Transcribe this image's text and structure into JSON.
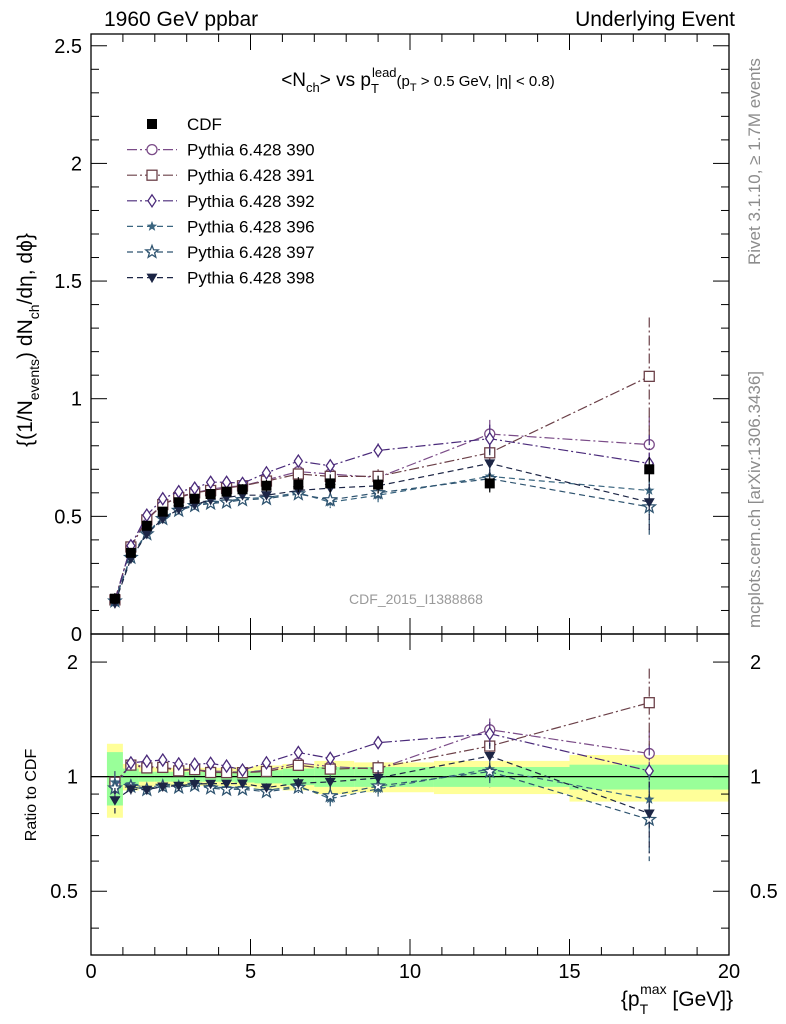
{
  "header": {
    "left": "1960 GeV ppbar",
    "right": "Underlying Event"
  },
  "side_labels": {
    "rivet": "Rivet 3.1.10, ≥ 1.7M events",
    "mcplots": "mcplots.cern.ch [arXiv:1306.3436]"
  },
  "watermark": "CDF_2015_I1388868",
  "main_ylabel": "{(1/N_events) dN_ch/dη, dϕ}",
  "ratio_ylabel": "Ratio to CDF",
  "xlabel": "{p_T^max [GeV]}",
  "chart_data": {
    "type": "scatter",
    "title": "<N_ch> vs p_T^lead (p_T > 0.5 GeV, |η| < 0.8)",
    "xlim": [
      0,
      20
    ],
    "ylim": [
      0,
      2.55
    ],
    "ratio_ylim": [
      0.34,
      2.37
    ],
    "x_ticks": [
      "0",
      "5",
      "10",
      "15",
      "20"
    ],
    "y_ticks": [
      "0",
      "0.5",
      "1",
      "1.5",
      "2",
      "2.5"
    ],
    "ratio_ticks": [
      "0.5",
      "1",
      "2"
    ],
    "legend_position": "top-left",
    "x": [
      0.75,
      1.25,
      1.75,
      2.25,
      2.75,
      3.25,
      3.75,
      4.25,
      4.75,
      5.5,
      6.5,
      7.5,
      9.0,
      12.5,
      17.5
    ],
    "cdf": {
      "name": "CDF",
      "color": "#000000",
      "values": [
        0.15,
        0.345,
        0.46,
        0.52,
        0.56,
        0.575,
        0.595,
        0.605,
        0.615,
        0.63,
        0.635,
        0.64,
        0.635,
        0.64,
        0.7
      ],
      "band_inner": [
        0.16,
        0.05,
        0.03,
        0.03,
        0.03,
        0.03,
        0.03,
        0.03,
        0.035,
        0.04,
        0.05,
        0.06,
        0.06,
        0.06,
        0.075
      ],
      "band_outer": [
        0.22,
        0.08,
        0.06,
        0.055,
        0.055,
        0.055,
        0.055,
        0.055,
        0.06,
        0.07,
        0.08,
        0.1,
        0.09,
        0.1,
        0.14
      ]
    },
    "series": [
      {
        "name": "Pythia 6.428 390",
        "color": "#7b4c88",
        "marker": "circle-open",
        "dash": "10,3,2,3",
        "values": [
          0.145,
          0.37,
          0.49,
          0.55,
          0.585,
          0.6,
          0.615,
          0.625,
          0.63,
          0.655,
          0.69,
          0.68,
          0.665,
          0.85,
          0.805
        ],
        "errors": [
          0.01,
          0.01,
          0.01,
          0.01,
          0.01,
          0.01,
          0.01,
          0.012,
          0.012,
          0.015,
          0.02,
          0.025,
          0.03,
          0.06,
          0.12
        ]
      },
      {
        "name": "Pythia 6.428 391",
        "color": "#6b4048",
        "marker": "square-open",
        "dash": "10,3,2,3",
        "values": [
          0.145,
          0.37,
          0.485,
          0.55,
          0.58,
          0.6,
          0.61,
          0.62,
          0.63,
          0.65,
          0.68,
          0.67,
          0.67,
          0.77,
          1.095
        ],
        "errors": [
          0.01,
          0.01,
          0.01,
          0.01,
          0.01,
          0.01,
          0.01,
          0.012,
          0.012,
          0.015,
          0.02,
          0.025,
          0.03,
          0.06,
          0.25
        ]
      },
      {
        "name": "Pythia 6.428 392",
        "color": "#4a2a7a",
        "marker": "diamond-open",
        "dash": "10,3,2,3",
        "values": [
          0.14,
          0.375,
          0.505,
          0.575,
          0.605,
          0.62,
          0.645,
          0.645,
          0.64,
          0.685,
          0.735,
          0.715,
          0.78,
          0.83,
          0.725
        ],
        "errors": [
          0.01,
          0.01,
          0.01,
          0.01,
          0.01,
          0.01,
          0.01,
          0.012,
          0.012,
          0.015,
          0.02,
          0.025,
          0.03,
          0.06,
          0.12
        ]
      },
      {
        "name": "Pythia 6.428 396",
        "color": "#3b6680",
        "marker": "star-filled",
        "dash": "6,4",
        "values": [
          0.145,
          0.33,
          0.43,
          0.495,
          0.53,
          0.55,
          0.56,
          0.565,
          0.575,
          0.58,
          0.6,
          0.56,
          0.59,
          0.67,
          0.61
        ],
        "errors": [
          0.01,
          0.01,
          0.01,
          0.01,
          0.01,
          0.01,
          0.01,
          0.012,
          0.012,
          0.015,
          0.02,
          0.025,
          0.03,
          0.06,
          0.1
        ]
      },
      {
        "name": "Pythia 6.428 397",
        "color": "#2f5470",
        "marker": "star-open",
        "dash": "6,4",
        "values": [
          0.14,
          0.325,
          0.425,
          0.49,
          0.525,
          0.545,
          0.555,
          0.56,
          0.57,
          0.575,
          0.595,
          0.57,
          0.6,
          0.66,
          0.54
        ],
        "errors": [
          0.01,
          0.01,
          0.01,
          0.01,
          0.01,
          0.01,
          0.01,
          0.012,
          0.012,
          0.015,
          0.02,
          0.025,
          0.03,
          0.06,
          0.12
        ]
      },
      {
        "name": "Pythia 6.428 398",
        "color": "#1c2545",
        "marker": "triangle-down-filled",
        "dash": "6,4",
        "values": [
          0.13,
          0.32,
          0.425,
          0.49,
          0.53,
          0.55,
          0.57,
          0.58,
          0.59,
          0.59,
          0.61,
          0.62,
          0.63,
          0.725,
          0.56
        ],
        "errors": [
          0.01,
          0.01,
          0.01,
          0.01,
          0.01,
          0.01,
          0.01,
          0.012,
          0.012,
          0.015,
          0.02,
          0.025,
          0.03,
          0.06,
          0.12
        ]
      }
    ]
  }
}
